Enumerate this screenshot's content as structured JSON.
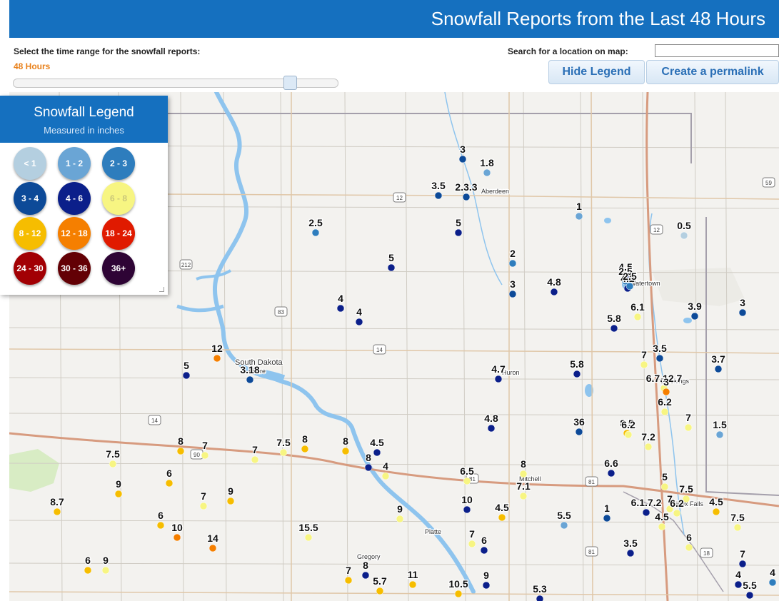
{
  "header": {
    "title": "Snowfall Reports from the Last 48 Hours"
  },
  "controls": {
    "range_label": "Select the time range for the snowfall reports:",
    "range_value": "48 Hours",
    "search_label": "Search for a location on map:",
    "search_value": "",
    "hide_legend_label": "Hide Legend",
    "permalink_label": "Create a permalink"
  },
  "legend": {
    "title": "Snowfall Legend",
    "subtitle": "Measured in inches",
    "items": [
      {
        "label": "< 1",
        "color": "#b4cfe0"
      },
      {
        "label": "1 - 2",
        "color": "#6aa5d5"
      },
      {
        "label": "2 - 3",
        "color": "#2e7dbd"
      },
      {
        "label": "3 - 4",
        "color": "#0d4a98"
      },
      {
        "label": "4 - 6",
        "color": "#0b1f8a"
      },
      {
        "label": "6 - 8",
        "color": "#f7f582"
      },
      {
        "label": "8 - 12",
        "color": "#f6bd00"
      },
      {
        "label": "12 - 18",
        "color": "#f57f00"
      },
      {
        "label": "18 - 24",
        "color": "#e01a00"
      },
      {
        "label": "24 - 30",
        "color": "#a20004"
      },
      {
        "label": "30 - 36",
        "color": "#630005"
      },
      {
        "label": "36+",
        "color": "#2e0435"
      }
    ]
  },
  "map": {
    "place_labels": [
      "Aberdeen",
      "Watertown",
      "South Dakota",
      "Pierre",
      "Huron",
      "Brookings",
      "Mitchell",
      "Sioux Falls",
      "Platte",
      "Gregory"
    ],
    "route_shields": [
      "12",
      "12",
      "212",
      "83",
      "14",
      "14",
      "90",
      "81",
      "81",
      "81",
      "18",
      "59"
    ],
    "report_labels": [
      "3",
      "1.8",
      "3.5",
      "2.3.3",
      "2.5",
      "5",
      "1",
      "0.5",
      "5",
      "2",
      "4.5",
      "2.5",
      "4.2",
      "2.5",
      "4",
      "4",
      "3",
      "4.8",
      "5.8",
      "6.1",
      "3.9",
      "3",
      "12",
      "3.18",
      "5",
      "4.7",
      "5.8",
      "7",
      "3.5",
      "3.7",
      "6.7.12.7",
      "3",
      "6.2",
      "7",
      "4.8",
      "36",
      "8.5",
      "6.2",
      "7.2",
      "1.5",
      "8",
      "7",
      "7",
      "7.5",
      "8",
      "8",
      "4.5",
      "8",
      "4",
      "6.5",
      "6",
      "7.5",
      "9",
      "7",
      "9",
      "8",
      "7.1",
      "6.6",
      "5",
      "7.5",
      "7",
      "6.2",
      "6.1.7.2",
      "4.5",
      "8.7",
      "10",
      "4.5",
      "9",
      "6",
      "10",
      "14",
      "15.5",
      "7",
      "6",
      "5.5",
      "1",
      "3.5",
      "4.5",
      "7.5",
      "6",
      "6",
      "9",
      "7",
      "8",
      "5.7",
      "11",
      "10.5",
      "9",
      "5.3",
      "4",
      "7",
      "5.5",
      "4",
      "5",
      "2.3"
    ]
  }
}
